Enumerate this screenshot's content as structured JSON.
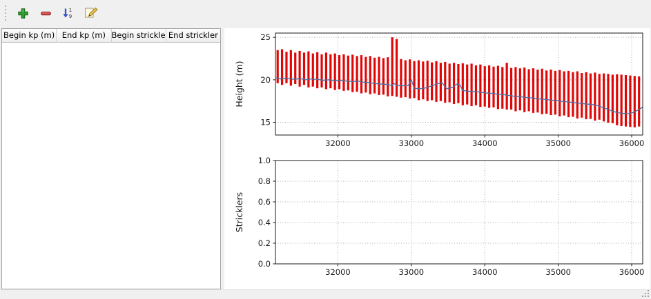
{
  "window": {
    "background": "#f0f0f0",
    "panel_background": "#ffffff"
  },
  "toolbar": {
    "buttons": [
      {
        "name": "add-row",
        "icon": "plus-icon",
        "color": "#2f9e2f"
      },
      {
        "name": "remove-row",
        "icon": "minus-icon",
        "color": "#cc3a3a"
      },
      {
        "name": "sort-numeric",
        "icon": "sort-numeric-icon",
        "color": "#3a57c8"
      },
      {
        "name": "edit",
        "icon": "edit-pencil-icon",
        "color": "#e8c34e"
      }
    ]
  },
  "table": {
    "columns": [
      "Begin kp (m)",
      "End kp (m)",
      "Begin strickler",
      "End strickler"
    ],
    "rows": []
  },
  "chart_data": [
    {
      "id": "height-profile",
      "type": "line",
      "title": "",
      "xlabel": "",
      "ylabel": "Height (m)",
      "xlim": [
        31150,
        36150
      ],
      "ylim": [
        13.5,
        25.5
      ],
      "xticks": [
        32000,
        33000,
        34000,
        35000,
        36000
      ],
      "xtick_labels": [
        "32000",
        "33000",
        "34000",
        "35000",
        "36000"
      ],
      "yticks": [
        15,
        20,
        25
      ],
      "ytick_labels": [
        "15",
        "20",
        "25"
      ],
      "grid": true,
      "legend": null,
      "bars": {
        "name": "bed-elevation-range",
        "color": "#e10606",
        "points": [
          [
            31180,
            19.6,
            23.5
          ],
          [
            31240,
            19.4,
            23.6
          ],
          [
            31300,
            19.6,
            23.3
          ],
          [
            31360,
            19.3,
            23.5
          ],
          [
            31420,
            19.5,
            23.2
          ],
          [
            31480,
            19.2,
            23.4
          ],
          [
            31540,
            19.4,
            23.2
          ],
          [
            31600,
            19.1,
            23.35
          ],
          [
            31660,
            19.2,
            23.1
          ],
          [
            31720,
            19.0,
            23.25
          ],
          [
            31780,
            19.1,
            23.0
          ],
          [
            31840,
            18.9,
            23.2
          ],
          [
            31900,
            19.0,
            23.0
          ],
          [
            31960,
            18.8,
            23.1
          ],
          [
            32020,
            18.9,
            22.9
          ],
          [
            32080,
            18.7,
            23.0
          ],
          [
            32140,
            18.75,
            22.85
          ],
          [
            32200,
            18.55,
            22.95
          ],
          [
            32260,
            18.6,
            22.8
          ],
          [
            32320,
            18.4,
            22.9
          ],
          [
            32380,
            18.5,
            22.7
          ],
          [
            32440,
            18.3,
            22.8
          ],
          [
            32500,
            18.4,
            22.6
          ],
          [
            32560,
            18.2,
            22.7
          ],
          [
            32620,
            18.25,
            22.55
          ],
          [
            32680,
            18.05,
            22.65
          ],
          [
            32740,
            18.1,
            25.0
          ],
          [
            32800,
            18.0,
            24.8
          ],
          [
            32860,
            17.9,
            22.45
          ],
          [
            32920,
            17.95,
            22.3
          ],
          [
            32980,
            17.8,
            22.4
          ],
          [
            33040,
            17.85,
            22.2
          ],
          [
            33100,
            17.6,
            22.3
          ],
          [
            33160,
            17.7,
            22.15
          ],
          [
            33220,
            17.5,
            22.25
          ],
          [
            33280,
            17.6,
            22.05
          ],
          [
            33340,
            17.4,
            22.2
          ],
          [
            33400,
            17.5,
            22.0
          ],
          [
            33460,
            17.3,
            22.1
          ],
          [
            33520,
            17.35,
            21.9
          ],
          [
            33580,
            17.15,
            22.0
          ],
          [
            33640,
            17.25,
            21.85
          ],
          [
            33700,
            17.0,
            21.95
          ],
          [
            33760,
            17.1,
            21.8
          ],
          [
            33820,
            16.9,
            21.9
          ],
          [
            33880,
            17.0,
            21.7
          ],
          [
            33940,
            16.8,
            21.8
          ],
          [
            34000,
            16.85,
            21.6
          ],
          [
            34060,
            16.7,
            21.7
          ],
          [
            34120,
            16.75,
            21.55
          ],
          [
            34180,
            16.55,
            21.65
          ],
          [
            34240,
            16.6,
            21.5
          ],
          [
            34300,
            16.5,
            22.0
          ],
          [
            34360,
            16.5,
            21.4
          ],
          [
            34420,
            16.3,
            21.5
          ],
          [
            34480,
            16.4,
            21.35
          ],
          [
            34540,
            16.2,
            21.45
          ],
          [
            34600,
            16.3,
            21.25
          ],
          [
            34660,
            16.1,
            21.35
          ],
          [
            34720,
            16.15,
            21.2
          ],
          [
            34780,
            15.95,
            21.3
          ],
          [
            34840,
            16.0,
            21.1
          ],
          [
            34900,
            15.85,
            21.2
          ],
          [
            34960,
            15.9,
            21.05
          ],
          [
            35020,
            15.7,
            21.15
          ],
          [
            35080,
            15.8,
            21.0
          ],
          [
            35140,
            15.6,
            21.05
          ],
          [
            35200,
            15.65,
            20.9
          ],
          [
            35260,
            15.45,
            21.0
          ],
          [
            35320,
            15.55,
            20.8
          ],
          [
            35380,
            15.35,
            20.9
          ],
          [
            35440,
            15.4,
            20.75
          ],
          [
            35500,
            15.2,
            20.85
          ],
          [
            35560,
            15.3,
            20.7
          ],
          [
            35620,
            15.1,
            20.75
          ],
          [
            35680,
            14.95,
            20.7
          ],
          [
            35740,
            14.9,
            20.6
          ],
          [
            35800,
            14.65,
            20.65
          ],
          [
            35860,
            14.55,
            20.6
          ],
          [
            35920,
            14.5,
            20.55
          ],
          [
            35980,
            14.45,
            20.5
          ],
          [
            36040,
            14.4,
            20.45
          ],
          [
            36100,
            14.5,
            20.4
          ]
        ]
      },
      "series": [
        {
          "name": "mean-height",
          "color": "#4a6fa5",
          "points": [
            [
              31160,
              20.25
            ],
            [
              31240,
              20.1
            ],
            [
              31320,
              20.2
            ],
            [
              31400,
              20.05
            ],
            [
              31480,
              20.15
            ],
            [
              31560,
              20.0
            ],
            [
              31640,
              20.1
            ],
            [
              31720,
              20.05
            ],
            [
              31800,
              19.95
            ],
            [
              31880,
              20.0
            ],
            [
              31960,
              19.9
            ],
            [
              32040,
              19.95
            ],
            [
              32120,
              19.85
            ],
            [
              32200,
              19.8
            ],
            [
              32280,
              19.85
            ],
            [
              32360,
              19.7
            ],
            [
              32440,
              19.65
            ],
            [
              32520,
              19.55
            ],
            [
              32600,
              19.5
            ],
            [
              32680,
              19.45
            ],
            [
              32740,
              19.3
            ],
            [
              32760,
              19.6
            ],
            [
              32800,
              19.35
            ],
            [
              32880,
              19.3
            ],
            [
              32960,
              19.35
            ],
            [
              33000,
              20.0
            ],
            [
              33040,
              19.0
            ],
            [
              33120,
              18.95
            ],
            [
              33200,
              19.05
            ],
            [
              33280,
              19.3
            ],
            [
              33360,
              19.55
            ],
            [
              33420,
              19.65
            ],
            [
              33480,
              18.95
            ],
            [
              33560,
              19.1
            ],
            [
              33620,
              19.5
            ],
            [
              33660,
              19.4
            ],
            [
              33700,
              18.75
            ],
            [
              33780,
              18.65
            ],
            [
              33860,
              18.6
            ],
            [
              33940,
              18.55
            ],
            [
              34020,
              18.45
            ],
            [
              34100,
              18.4
            ],
            [
              34180,
              18.3
            ],
            [
              34260,
              18.25
            ],
            [
              34340,
              18.15
            ],
            [
              34420,
              18.05
            ],
            [
              34500,
              18.0
            ],
            [
              34580,
              17.9
            ],
            [
              34660,
              17.85
            ],
            [
              34740,
              17.75
            ],
            [
              34820,
              17.7
            ],
            [
              34900,
              17.6
            ],
            [
              34980,
              17.55
            ],
            [
              35060,
              17.45
            ],
            [
              35140,
              17.4
            ],
            [
              35220,
              17.3
            ],
            [
              35300,
              17.25
            ],
            [
              35380,
              17.15
            ],
            [
              35460,
              17.1
            ],
            [
              35540,
              16.95
            ],
            [
              35620,
              16.7
            ],
            [
              35700,
              16.45
            ],
            [
              35780,
              16.2
            ],
            [
              35860,
              16.05
            ],
            [
              35940,
              16.0
            ],
            [
              36020,
              16.15
            ],
            [
              36100,
              16.5
            ],
            [
              36150,
              16.8
            ]
          ]
        }
      ]
    },
    {
      "id": "stricklers",
      "type": "line",
      "title": "",
      "xlabel": "",
      "ylabel": "Stricklers",
      "xlim": [
        31150,
        36150
      ],
      "ylim": [
        0.0,
        1.0
      ],
      "xticks": [
        32000,
        33000,
        34000,
        35000,
        36000
      ],
      "xtick_labels": [
        "32000",
        "33000",
        "34000",
        "35000",
        "36000"
      ],
      "yticks": [
        0.0,
        0.2,
        0.4,
        0.6,
        0.8,
        1.0
      ],
      "ytick_labels": [
        "0.0",
        "0.2",
        "0.4",
        "0.6",
        "0.8",
        "1.0"
      ],
      "grid": true,
      "legend": null,
      "series": []
    }
  ],
  "colors": {
    "bar_red": "#e10606",
    "line_blue": "#4a6fa5",
    "grid_gray": "#a8a8a8",
    "frame": "#1a1a1a"
  }
}
